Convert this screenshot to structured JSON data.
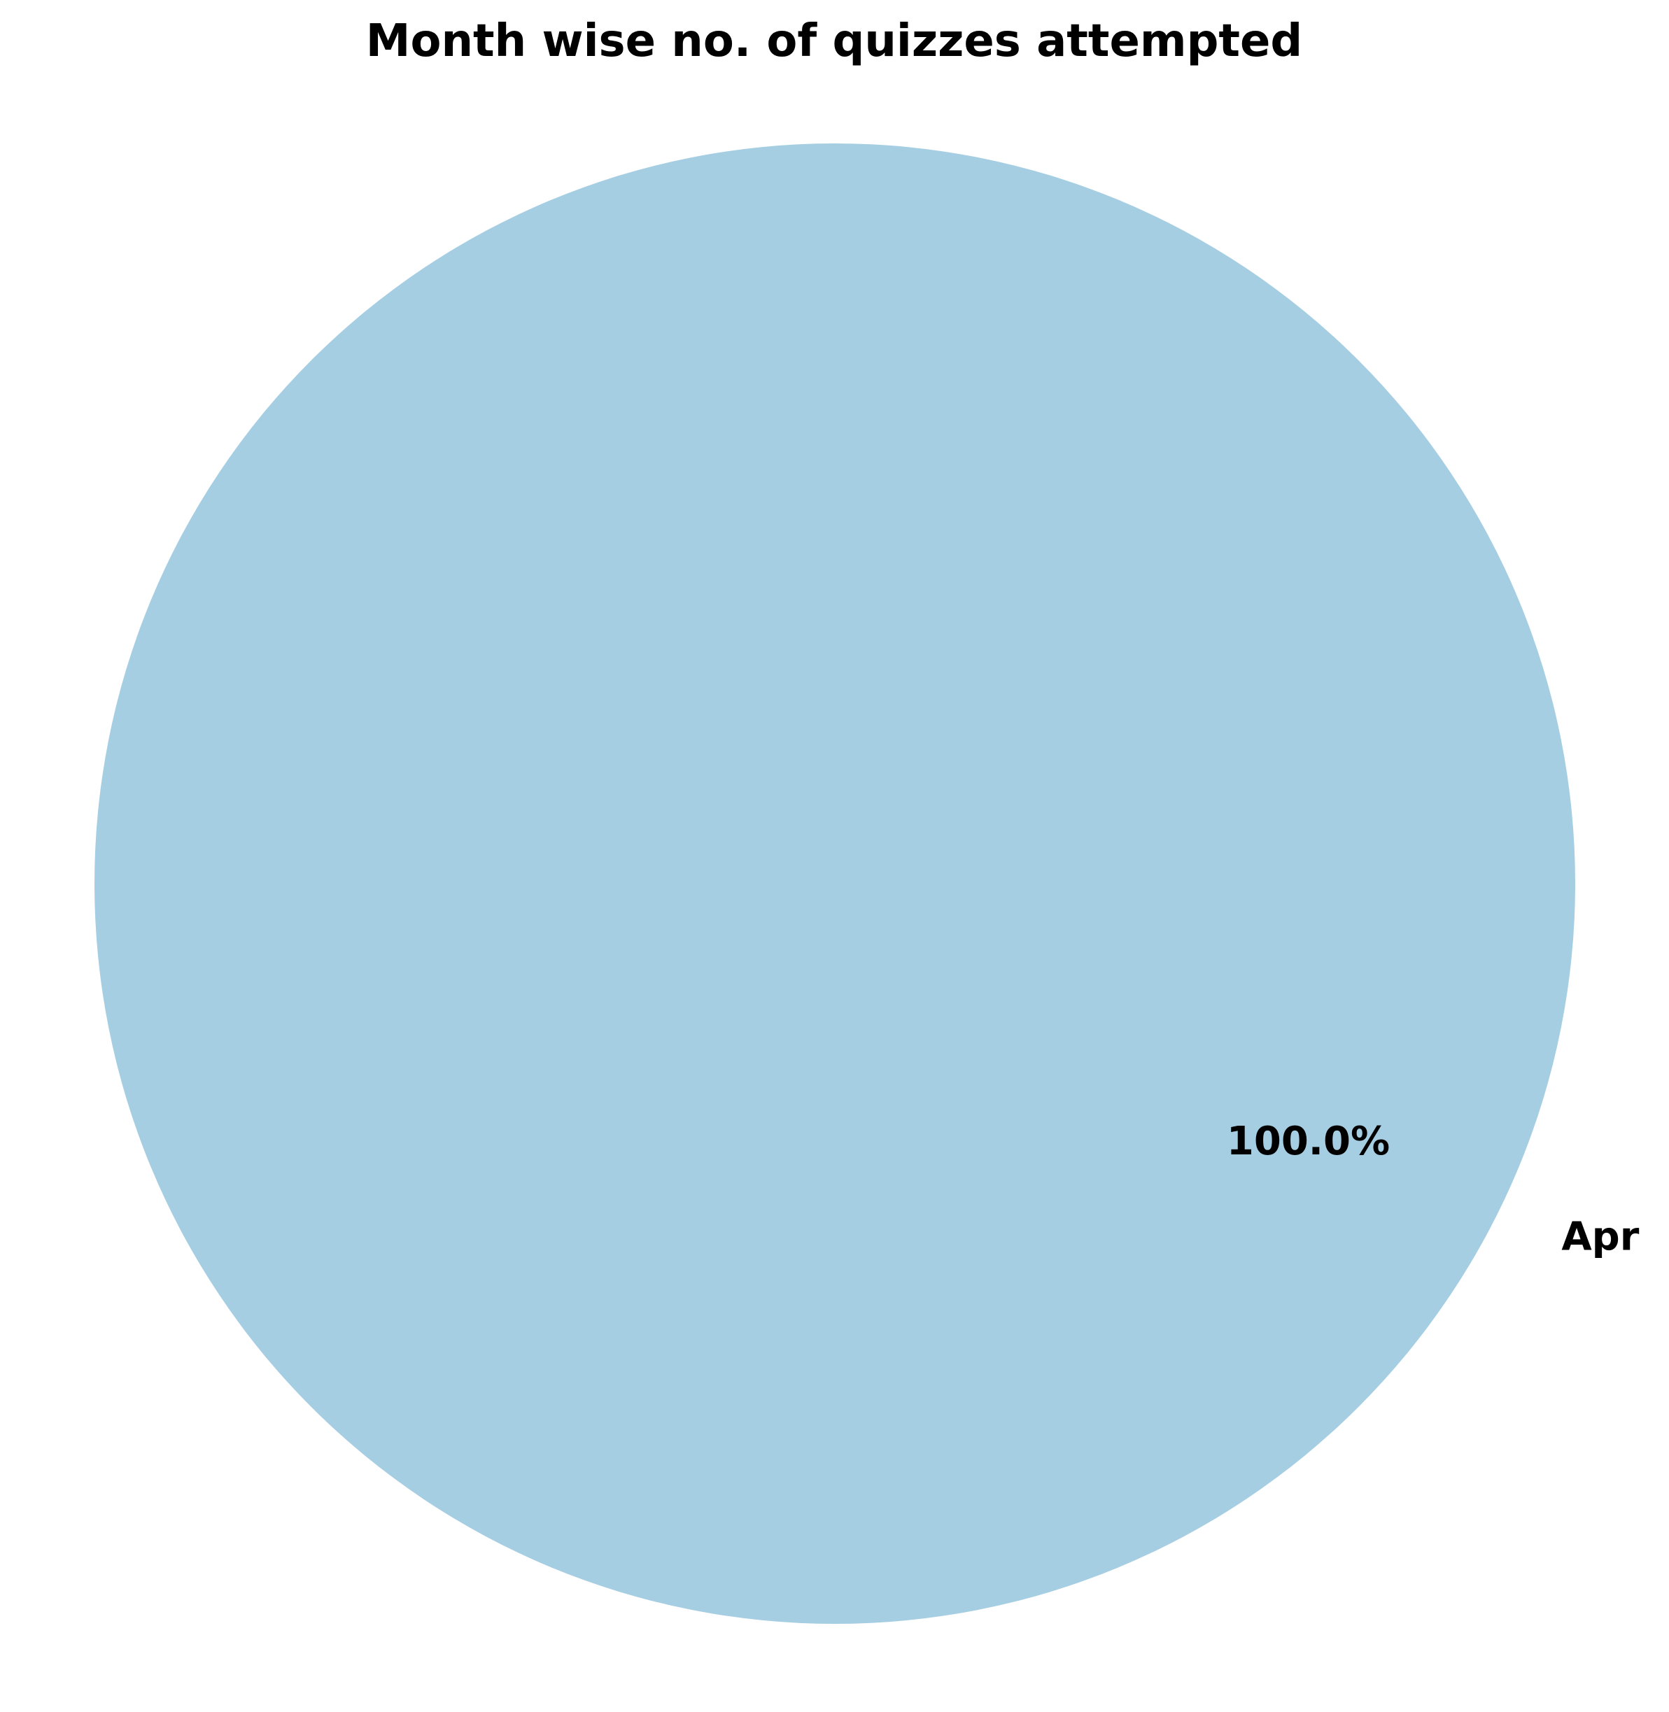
{
  "chart_data": {
    "type": "pie",
    "title": "Month wise no. of quizzes attempted",
    "categories": [
      "Apr"
    ],
    "values": [
      1
    ],
    "percent_labels": [
      "100.0%"
    ],
    "colors": [
      "#a6cee3"
    ],
    "legend": "none",
    "grid": false
  }
}
